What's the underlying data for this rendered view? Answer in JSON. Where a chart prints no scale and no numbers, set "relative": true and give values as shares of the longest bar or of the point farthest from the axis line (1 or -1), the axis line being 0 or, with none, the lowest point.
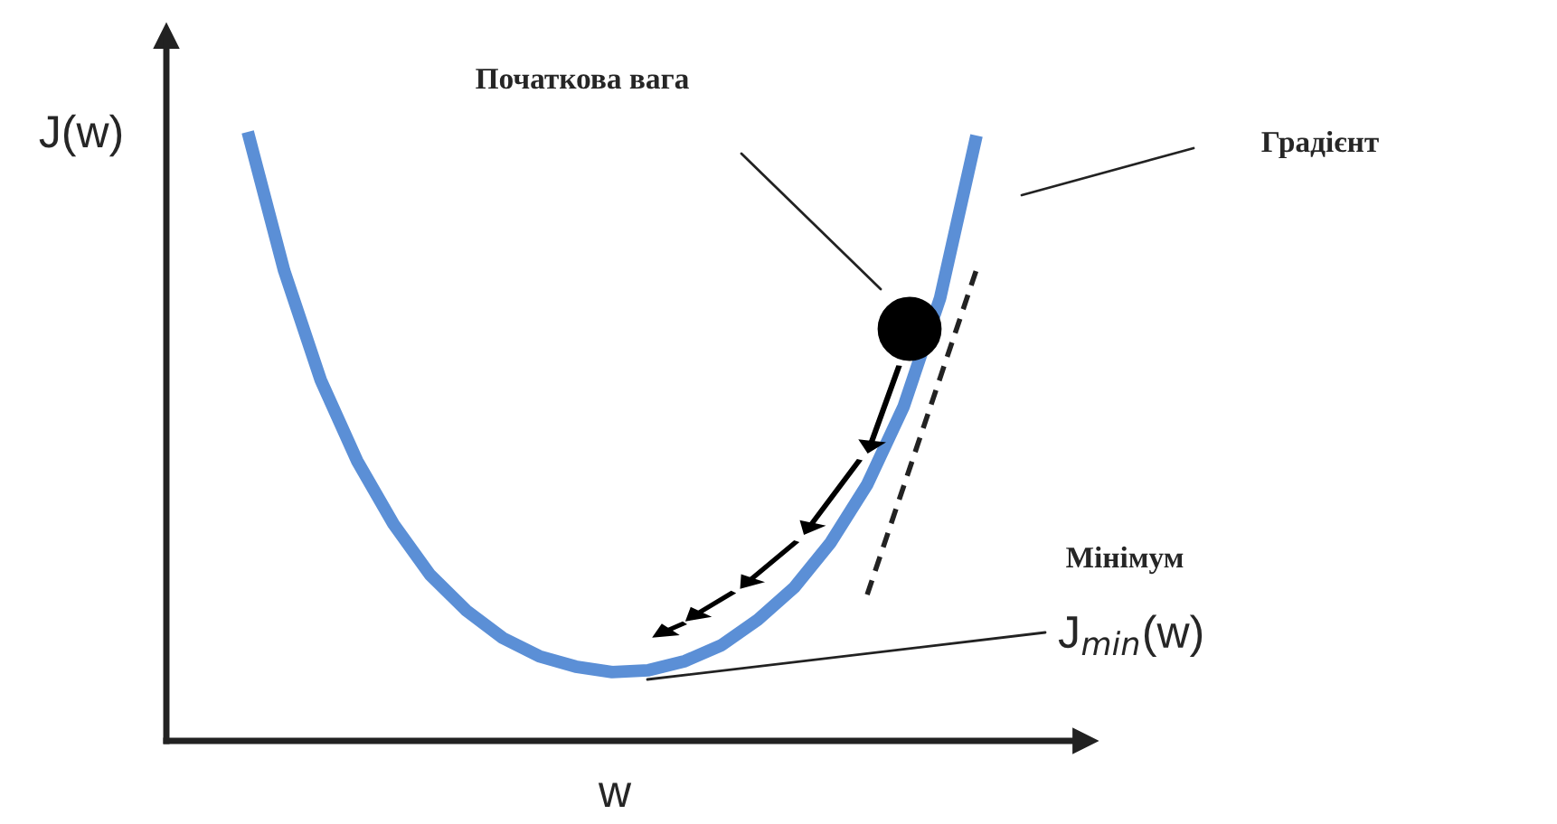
{
  "chart_data": {
    "type": "line",
    "relative": true,
    "xlabel": "w",
    "ylabel": "J(w)",
    "categories": [
      null,
      null,
      null,
      null,
      null,
      null,
      null,
      null,
      null,
      null,
      null,
      null,
      null,
      null,
      null,
      null,
      null,
      null,
      null,
      null,
      null
    ],
    "series": [
      {
        "color": "#5b8fd6",
        "values": [
          1.0,
          0.772,
          0.593,
          0.46,
          0.356,
          0.273,
          0.214,
          0.169,
          0.139,
          0.122,
          0.113,
          0.116,
          0.131,
          0.157,
          0.199,
          0.252,
          0.326,
          0.421,
          0.549,
          0.727,
          0.994
        ]
      },
      {
        "color": "#222222",
        "line_style": "dashed",
        "values": [
          null,
          null,
          null,
          null,
          null,
          null,
          null,
          null,
          null,
          null,
          null,
          null,
          null,
          null,
          null,
          null,
          null,
          0.24,
          0.418,
          0.596,
          0.774
        ]
      }
    ],
    "annotations": [
      "Початкова вага",
      "Градієнт",
      "Мінімум",
      "J$_{min}$(w)"
    ],
    "legend": false
  }
}
